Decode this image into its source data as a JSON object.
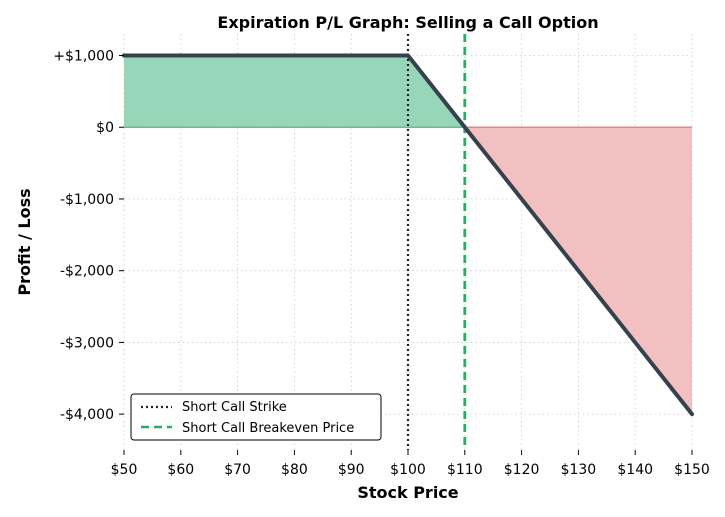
{
  "chart_data": {
    "type": "line",
    "title": "Expiration P/L Graph: Selling a Call Option",
    "xlabel": "Stock Price",
    "ylabel": "Profit / Loss",
    "xlim": [
      50,
      150
    ],
    "ylim": [
      -4500,
      1300
    ],
    "grid": true,
    "legend_position": "lower-left",
    "x_ticks": [
      50,
      60,
      70,
      80,
      90,
      100,
      110,
      120,
      130,
      140,
      150
    ],
    "x_tick_labels": [
      "$50",
      "$60",
      "$70",
      "$80",
      "$90",
      "$100",
      "$110",
      "$120",
      "$130",
      "$140",
      "$150"
    ],
    "y_ticks": [
      1000,
      0,
      -1000,
      -2000,
      -3000,
      -4000
    ],
    "y_tick_labels": [
      "+$1,000",
      "$0",
      "-$1,000",
      "-$2,000",
      "-$3,000",
      "-$4,000"
    ],
    "series": [
      {
        "x": [
          50,
          100,
          110,
          150
        ],
        "y": [
          1000,
          1000,
          0,
          -4000
        ],
        "color": "#36414e"
      }
    ],
    "reference_lines": [
      {
        "name": "Short Call Strike",
        "x": 100,
        "style": "dotted",
        "color": "#222222"
      },
      {
        "name": "Short Call Breakeven Price",
        "x": 110,
        "style": "dashed",
        "color": "#27ae60"
      }
    ],
    "fill_colors": {
      "profit": "#97d6b8",
      "loss": "#f2c0c0"
    }
  }
}
